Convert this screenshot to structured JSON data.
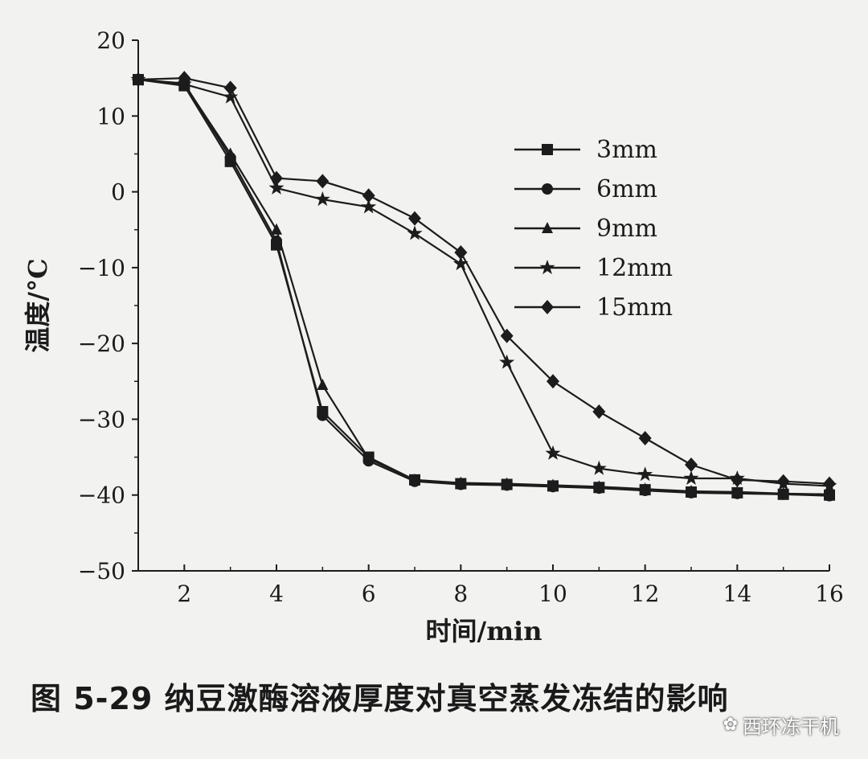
{
  "chart_data": {
    "type": "line",
    "xlabel": "时间/min",
    "ylabel": "温度/°C",
    "xlim": [
      1,
      16
    ],
    "ylim": [
      -50,
      20
    ],
    "xticks": [
      2,
      4,
      6,
      8,
      10,
      12,
      14,
      16
    ],
    "yticks": [
      20,
      10,
      0,
      -10,
      -20,
      -30,
      -40,
      -50
    ],
    "legend_position": "right",
    "series": [
      {
        "name": "3mm",
        "marker": "square",
        "x": [
          1,
          2,
          3,
          4,
          5,
          6,
          7,
          8,
          9,
          10,
          11,
          12,
          13,
          14,
          15,
          16
        ],
        "y": [
          14.8,
          14,
          4,
          -7,
          -29,
          -35,
          -38,
          -38.5,
          -38.6,
          -38.8,
          -39.0,
          -39.3,
          -39.6,
          -39.7,
          -39.9,
          -40.0
        ]
      },
      {
        "name": "6mm",
        "marker": "circle",
        "x": [
          1,
          2,
          3,
          4,
          5,
          6,
          7,
          8,
          9,
          10,
          11,
          12,
          13,
          14,
          15,
          16
        ],
        "y": [
          14.8,
          14.3,
          4.5,
          -6.5,
          -29.5,
          -35.5,
          -38.2,
          -38.6,
          -38.7,
          -38.9,
          -39.1,
          -39.4,
          -39.7,
          -39.8,
          -39.9,
          -40.1
        ]
      },
      {
        "name": "9mm",
        "marker": "triangle",
        "x": [
          1,
          2,
          3,
          4,
          5,
          6,
          7,
          8,
          9,
          10,
          11,
          12,
          13,
          14,
          15,
          16
        ],
        "y": [
          14.8,
          14.2,
          5,
          -5,
          -25.5,
          -35.2,
          -38.0,
          -38.4,
          -38.5,
          -38.7,
          -38.9,
          -39.2,
          -39.5,
          -39.6,
          -39.8,
          -39.9
        ]
      },
      {
        "name": "12mm",
        "marker": "star",
        "x": [
          1,
          2,
          3,
          4,
          5,
          6,
          7,
          8,
          9,
          10,
          11,
          12,
          13,
          14,
          15,
          16
        ],
        "y": [
          14.8,
          14.2,
          12.5,
          0.5,
          -1,
          -2,
          -5.5,
          -9.5,
          -22.5,
          -34.5,
          -36.5,
          -37.3,
          -37.8,
          -37.8,
          -38.5,
          -38.8
        ]
      },
      {
        "name": "15mm",
        "marker": "diamond",
        "x": [
          1,
          2,
          3,
          4,
          5,
          6,
          7,
          8,
          9,
          10,
          11,
          12,
          13,
          14,
          15,
          16
        ],
        "y": [
          14.8,
          15,
          13.7,
          1.8,
          1.4,
          -0.5,
          -3.5,
          -8,
          -19,
          -25,
          -29,
          -32.5,
          -36,
          -38,
          -38.2,
          -38.5
        ]
      }
    ]
  },
  "caption": "图 5-29   纳豆激酶溶液厚度对真空蒸发冻结的影响",
  "watermark": "西环冻干机"
}
